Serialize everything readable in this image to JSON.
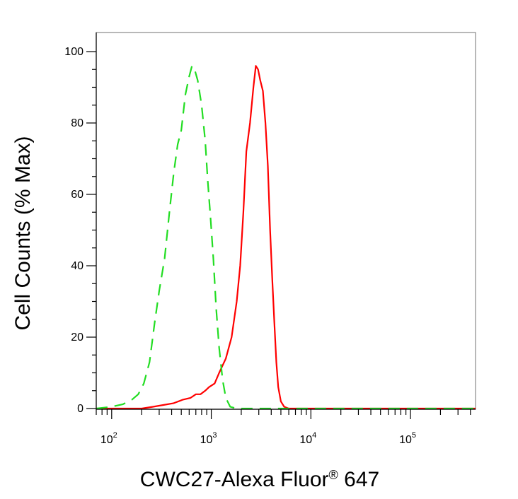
{
  "chart_data": {
    "type": "line",
    "title": "",
    "xlabel": "CWC27-Alexa Fluor",
    "xlabel_superscript": "®",
    "xlabel_suffix": " 647",
    "ylabel": "Cell Counts (% Max)",
    "x_scale": "log",
    "xlim": [
      70,
      450000
    ],
    "ylim": [
      0,
      105
    ],
    "y_ticks": [
      0,
      20,
      40,
      60,
      80,
      100
    ],
    "y_tick_labels": [
      "0",
      "20",
      "40",
      "60",
      "80",
      "100"
    ],
    "x_ticks": [
      100,
      1000,
      10000,
      100000
    ],
    "x_tick_labels": [
      {
        "base": "10",
        "exp": "2"
      },
      {
        "base": "10",
        "exp": "3"
      },
      {
        "base": "10",
        "exp": "4"
      },
      {
        "base": "10",
        "exp": "5"
      }
    ],
    "grid": false,
    "legend": "none",
    "series": [
      {
        "color": "#ff0000",
        "style": "solid",
        "points": [
          [
            70,
            0
          ],
          [
            200,
            0
          ],
          [
            260,
            0.5
          ],
          [
            330,
            1
          ],
          [
            420,
            1.5
          ],
          [
            520,
            2.5
          ],
          [
            620,
            3
          ],
          [
            700,
            4
          ],
          [
            780,
            4
          ],
          [
            870,
            5
          ],
          [
            950,
            6
          ],
          [
            1080,
            7
          ],
          [
            1200,
            10
          ],
          [
            1400,
            14
          ],
          [
            1600,
            20
          ],
          [
            1800,
            30
          ],
          [
            1950,
            40
          ],
          [
            2100,
            55
          ],
          [
            2250,
            72
          ],
          [
            2450,
            80
          ],
          [
            2650,
            90
          ],
          [
            2800,
            96
          ],
          [
            2950,
            95
          ],
          [
            3100,
            92
          ],
          [
            3300,
            89
          ],
          [
            3500,
            80
          ],
          [
            3700,
            68
          ],
          [
            3900,
            50
          ],
          [
            4100,
            36
          ],
          [
            4300,
            24
          ],
          [
            4500,
            13
          ],
          [
            4700,
            6
          ],
          [
            5000,
            2
          ],
          [
            5400,
            0.5
          ],
          [
            6000,
            0
          ],
          [
            450000,
            0
          ]
        ]
      },
      {
        "color": "#22dd22",
        "style": "dashed",
        "points": [
          [
            70,
            0
          ],
          [
            100,
            0.5
          ],
          [
            130,
            1.2
          ],
          [
            160,
            2.5
          ],
          [
            185,
            4
          ],
          [
            210,
            7
          ],
          [
            240,
            13
          ],
          [
            270,
            24
          ],
          [
            300,
            33
          ],
          [
            340,
            42
          ],
          [
            380,
            55
          ],
          [
            420,
            66
          ],
          [
            460,
            74
          ],
          [
            500,
            78
          ],
          [
            550,
            88
          ],
          [
            600,
            93
          ],
          [
            640,
            96
          ],
          [
            680,
            95
          ],
          [
            730,
            92
          ],
          [
            800,
            85
          ],
          [
            870,
            75
          ],
          [
            920,
            64
          ],
          [
            980,
            54
          ],
          [
            1050,
            42
          ],
          [
            1120,
            28
          ],
          [
            1200,
            17
          ],
          [
            1300,
            8
          ],
          [
            1400,
            3
          ],
          [
            1550,
            0.5
          ],
          [
            1800,
            0
          ],
          [
            450000,
            0
          ]
        ]
      }
    ]
  }
}
